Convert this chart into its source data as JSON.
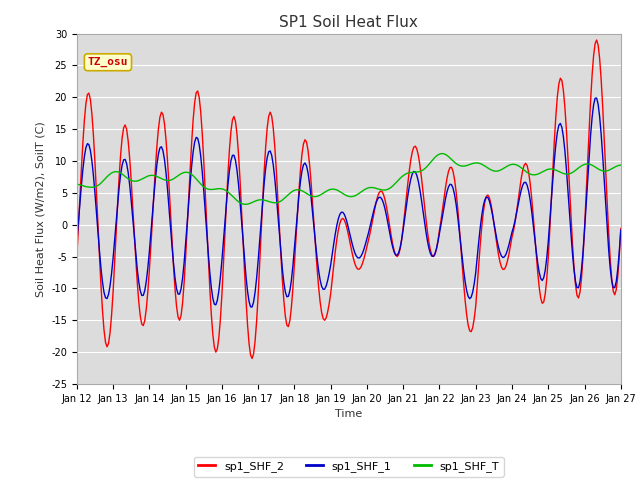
{
  "title": "SP1 Soil Heat Flux",
  "xlabel": "Time",
  "ylabel": "Soil Heat Flux (W/m2), SoilT (C)",
  "ylim": [
    -25,
    30
  ],
  "background_color": "#e8e8e8",
  "plot_bg_color": "#dcdcdc",
  "grid_color": "#ffffff",
  "line_colors": {
    "sp1_SHF_2": "#ff0000",
    "sp1_SHF_1": "#0000cc",
    "sp1_SHF_T": "#00bb00"
  },
  "tz_label": "TZ_osu",
  "tz_bg": "#ffffcc",
  "tz_border": "#ccaa00",
  "tz_text_color": "#cc0000",
  "tick_labels": [
    "Jan 12",
    "Jan 13",
    "Jan 14",
    "Jan 15",
    "Jan 16",
    "Jan 17",
    "Jan 18",
    "Jan 19",
    "Jan 20",
    "Jan 21",
    "Jan 22",
    "Jan 23",
    "Jan 24",
    "Jan 25",
    "Jan 26",
    "Jan 27"
  ],
  "yticks": [
    -25,
    -20,
    -15,
    -10,
    -5,
    0,
    5,
    10,
    15,
    20,
    25,
    30
  ],
  "legend_labels": [
    "sp1_SHF_2",
    "sp1_SHF_1",
    "sp1_SHF_T"
  ]
}
